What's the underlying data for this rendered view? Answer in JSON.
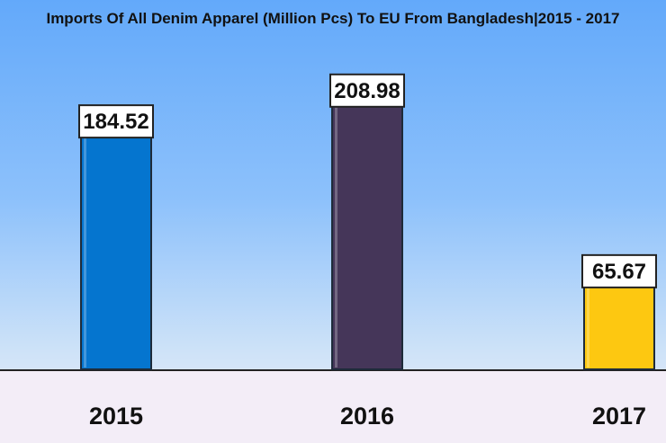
{
  "chart_data": {
    "type": "bar",
    "title": "Imports Of All Denim Apparel (Million Pcs) To EU From Bangladesh|2015 - 2017",
    "xlabel": "",
    "ylabel": "",
    "categories": [
      "2015",
      "2016",
      "2017"
    ],
    "values": [
      184.52,
      208.98,
      65.67
    ],
    "value_labels": [
      "184.52",
      "208.98",
      "65.67"
    ],
    "bar_colors": [
      "#0575cf",
      "#453659",
      "#fdc811"
    ],
    "ylim": [
      0,
      240
    ],
    "grid": false,
    "legend": "none"
  }
}
